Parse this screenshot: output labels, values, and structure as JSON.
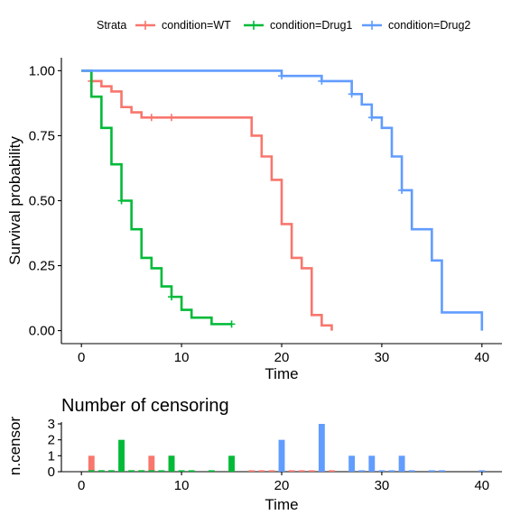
{
  "chart_data": [
    {
      "type": "line",
      "subtype": "kaplan-meier-step",
      "xlabel": "Time",
      "ylabel": "Survival probability",
      "xlim": [
        -2,
        42
      ],
      "ylim": [
        -0.05,
        1.05
      ],
      "xticks": [
        0,
        10,
        20,
        30,
        40
      ],
      "yticks": [
        0,
        0.25,
        0.5,
        0.75,
        1.0
      ],
      "ytick_labels": [
        "0.00",
        "0.25",
        "0.50",
        "0.75",
        "1.00"
      ],
      "grid": false,
      "legend": {
        "title": "Strata",
        "placement": "top",
        "entries": [
          "condition=WT",
          "condition=Drug1",
          "condition=Drug2"
        ]
      },
      "series": [
        {
          "name": "condition=WT",
          "color": "#F8766D",
          "steps": [
            [
              0,
              1.0
            ],
            [
              1,
              0.96
            ],
            [
              2,
              0.94
            ],
            [
              3,
              0.92
            ],
            [
              4,
              0.86
            ],
            [
              5,
              0.84
            ],
            [
              6,
              0.82
            ],
            [
              17,
              0.75
            ],
            [
              18,
              0.67
            ],
            [
              19,
              0.58
            ],
            [
              20,
              0.41
            ],
            [
              21,
              0.28
            ],
            [
              22,
              0.24
            ],
            [
              23,
              0.06
            ],
            [
              24,
              0.02
            ],
            [
              25,
              0.0
            ]
          ],
          "censor": [
            [
              1,
              0.96
            ],
            [
              7,
              0.82
            ],
            [
              9,
              0.82
            ]
          ]
        },
        {
          "name": "condition=Drug1",
          "color": "#00BA38",
          "steps": [
            [
              0,
              1.0
            ],
            [
              1,
              0.9
            ],
            [
              2,
              0.78
            ],
            [
              3,
              0.64
            ],
            [
              4,
              0.5
            ],
            [
              5,
              0.39
            ],
            [
              6,
              0.28
            ],
            [
              7,
              0.24
            ],
            [
              8,
              0.17
            ],
            [
              9,
              0.13
            ],
            [
              10,
              0.08
            ],
            [
              11,
              0.05
            ],
            [
              13,
              0.025
            ],
            [
              15,
              0.025
            ]
          ],
          "censor": [
            [
              4,
              0.5
            ],
            [
              9,
              0.13
            ],
            [
              15,
              0.025
            ]
          ]
        },
        {
          "name": "condition=Drug2",
          "color": "#619CFF",
          "steps": [
            [
              0,
              1.0
            ],
            [
              20,
              0.98
            ],
            [
              24,
              0.96
            ],
            [
              27,
              0.91
            ],
            [
              28,
              0.87
            ],
            [
              29,
              0.82
            ],
            [
              30,
              0.78
            ],
            [
              31,
              0.67
            ],
            [
              32,
              0.54
            ],
            [
              33,
              0.39
            ],
            [
              35,
              0.27
            ],
            [
              36,
              0.07
            ],
            [
              40,
              0.07
            ],
            [
              40,
              0.0
            ]
          ],
          "censor": [
            [
              20,
              0.98
            ],
            [
              24,
              0.96
            ],
            [
              27,
              0.91
            ],
            [
              29,
              0.82
            ],
            [
              32,
              0.54
            ]
          ]
        }
      ]
    },
    {
      "type": "bar",
      "title": "Number of censoring",
      "xlabel": "Time",
      "ylabel": "n.censor",
      "xlim": [
        -2,
        42
      ],
      "ylim": [
        0,
        3
      ],
      "xticks": [
        0,
        10,
        20,
        30,
        40
      ],
      "yticks": [
        0,
        1,
        2,
        3
      ],
      "grid": false,
      "series": [
        {
          "name": "condition=WT",
          "color": "#F8766D",
          "x": [
            1,
            2,
            3,
            4,
            5,
            6,
            7,
            9,
            17,
            18,
            19,
            20,
            21,
            22,
            23,
            24,
            25
          ],
          "values": [
            1,
            0,
            0,
            0,
            0,
            0,
            1,
            1,
            0,
            0,
            0,
            0,
            0,
            0,
            0,
            0,
            0
          ]
        },
        {
          "name": "condition=Drug1",
          "color": "#00BA38",
          "x": [
            1,
            2,
            3,
            4,
            5,
            6,
            7,
            8,
            9,
            10,
            11,
            13,
            15
          ],
          "values": [
            0,
            0,
            0,
            2,
            0,
            0,
            0,
            0,
            1,
            0,
            0,
            0,
            1
          ]
        },
        {
          "name": "condition=Drug2",
          "color": "#619CFF",
          "x": [
            20,
            24,
            27,
            28,
            29,
            30,
            31,
            32,
            33,
            35,
            36,
            40
          ],
          "values": [
            2,
            3,
            1,
            0,
            1,
            0,
            0,
            1,
            0,
            0,
            0,
            0
          ]
        }
      ]
    }
  ]
}
